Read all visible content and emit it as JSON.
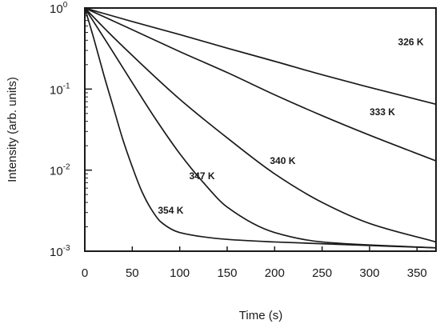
{
  "chart_data": {
    "type": "line",
    "title": "",
    "xlabel": "Time (s)",
    "ylabel": "Intensity (arb. units)",
    "xlim": [
      0,
      370
    ],
    "ylim": [
      0.001,
      1
    ],
    "yscale": "log",
    "grid": false,
    "x_ticks": [
      0,
      50,
      100,
      150,
      200,
      250,
      300,
      350
    ],
    "y_ticks": [
      {
        "value": 1,
        "base": "10",
        "exp": "0"
      },
      {
        "value": 0.1,
        "base": "10",
        "exp": "-1"
      },
      {
        "value": 0.01,
        "base": "10",
        "exp": "-2"
      },
      {
        "value": 0.001,
        "base": "10",
        "exp": "-3"
      }
    ],
    "series": [
      {
        "name": "326 K",
        "points": [
          [
            0,
            1
          ],
          [
            50,
            0.68
          ],
          [
            100,
            0.47
          ],
          [
            150,
            0.32
          ],
          [
            200,
            0.22
          ],
          [
            250,
            0.15
          ],
          [
            300,
            0.105
          ],
          [
            370,
            0.065
          ]
        ]
      },
      {
        "name": "333 K",
        "points": [
          [
            0,
            1
          ],
          [
            50,
            0.54
          ],
          [
            100,
            0.29
          ],
          [
            150,
            0.16
          ],
          [
            200,
            0.085
          ],
          [
            250,
            0.047
          ],
          [
            300,
            0.027
          ],
          [
            370,
            0.013
          ]
        ]
      },
      {
        "name": "340 K",
        "points": [
          [
            0,
            1
          ],
          [
            25,
            0.5
          ],
          [
            50,
            0.26
          ],
          [
            100,
            0.075
          ],
          [
            150,
            0.025
          ],
          [
            200,
            0.009
          ],
          [
            250,
            0.004
          ],
          [
            300,
            0.0022
          ],
          [
            370,
            0.0013
          ]
        ]
      },
      {
        "name": "347 K",
        "points": [
          [
            0,
            1
          ],
          [
            25,
            0.35
          ],
          [
            50,
            0.12
          ],
          [
            75,
            0.042
          ],
          [
            100,
            0.016
          ],
          [
            125,
            0.007
          ],
          [
            150,
            0.0035
          ],
          [
            200,
            0.0017
          ],
          [
            250,
            0.0013
          ],
          [
            370,
            0.0011
          ]
        ]
      },
      {
        "name": "354 K",
        "points": [
          [
            0,
            1
          ],
          [
            10,
            0.4
          ],
          [
            20,
            0.15
          ],
          [
            30,
            0.06
          ],
          [
            40,
            0.024
          ],
          [
            50,
            0.011
          ],
          [
            60,
            0.0055
          ],
          [
            70,
            0.0033
          ],
          [
            80,
            0.0023
          ],
          [
            100,
            0.0017
          ],
          [
            150,
            0.0014
          ],
          [
            200,
            0.0013
          ],
          [
            370,
            0.0011
          ]
        ]
      }
    ],
    "annotations": [
      {
        "text": "326 K",
        "x": 330,
        "y": 0.38
      },
      {
        "text": "333 K",
        "x": 300,
        "y": 0.052
      },
      {
        "text": "340 K",
        "x": 195,
        "y": 0.013
      },
      {
        "text": "347 K",
        "x": 110,
        "y": 0.0085
      },
      {
        "text": "354 K",
        "x": 77,
        "y": 0.0032
      }
    ]
  }
}
